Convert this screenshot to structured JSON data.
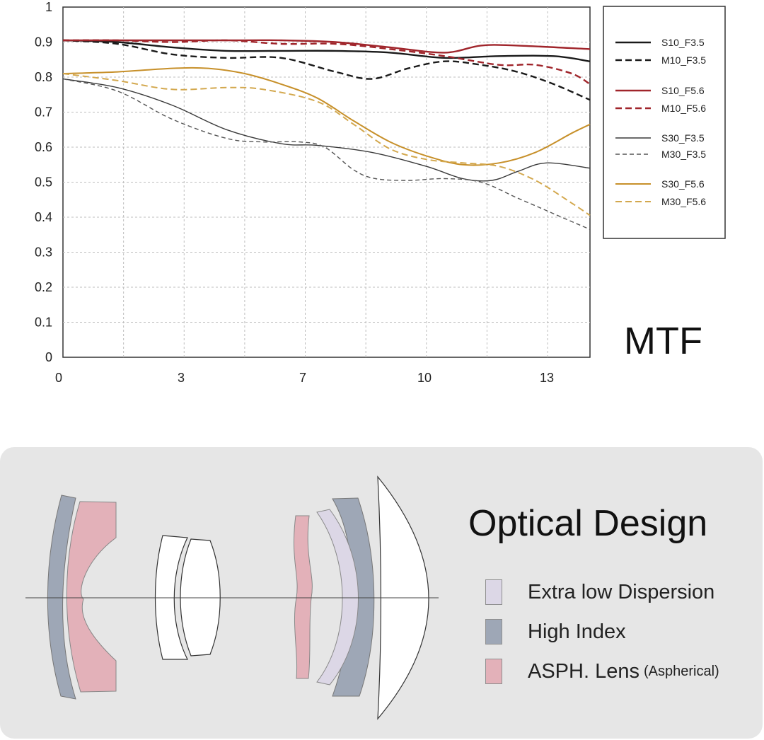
{
  "chart_data": {
    "type": "line",
    "title": "MTF",
    "xlabel": "",
    "ylabel": "",
    "xlim": [
      0,
      14.5
    ],
    "ylim": [
      0,
      1
    ],
    "x_ticks": [
      0,
      3,
      7,
      10,
      13
    ],
    "y_ticks": [
      0,
      0.1,
      0.2,
      0.3,
      0.4,
      0.5,
      0.6,
      0.7,
      0.8,
      0.9,
      1
    ],
    "grid": true,
    "legend_position": "right",
    "series": [
      {
        "name": "S10_F3.5",
        "color": "#1a1a1a",
        "style": "solid",
        "width": 2.4,
        "points": [
          [
            0,
            0.905
          ],
          [
            1.5,
            0.9
          ],
          [
            3,
            0.885
          ],
          [
            4.5,
            0.875
          ],
          [
            6,
            0.875
          ],
          [
            7.5,
            0.875
          ],
          [
            9,
            0.87
          ],
          [
            10.5,
            0.855
          ],
          [
            12,
            0.86
          ],
          [
            13.5,
            0.86
          ],
          [
            14.5,
            0.845
          ]
        ]
      },
      {
        "name": "M10_F3.5",
        "color": "#1a1a1a",
        "style": "dashed",
        "width": 2.4,
        "points": [
          [
            0,
            0.905
          ],
          [
            1.5,
            0.895
          ],
          [
            3,
            0.865
          ],
          [
            4.5,
            0.855
          ],
          [
            6,
            0.855
          ],
          [
            7.5,
            0.815
          ],
          [
            8.5,
            0.795
          ],
          [
            9.5,
            0.825
          ],
          [
            10.5,
            0.845
          ],
          [
            11.5,
            0.835
          ],
          [
            12.5,
            0.815
          ],
          [
            13.5,
            0.78
          ],
          [
            14.5,
            0.735
          ]
        ]
      },
      {
        "name": "S10_F5.6",
        "color": "#a0252b",
        "style": "solid",
        "width": 2.4,
        "points": [
          [
            0,
            0.905
          ],
          [
            1.5,
            0.905
          ],
          [
            3,
            0.905
          ],
          [
            4.5,
            0.905
          ],
          [
            6,
            0.905
          ],
          [
            7.5,
            0.9
          ],
          [
            9,
            0.885
          ],
          [
            10.5,
            0.87
          ],
          [
            11.5,
            0.89
          ],
          [
            12.5,
            0.89
          ],
          [
            14.5,
            0.88
          ]
        ]
      },
      {
        "name": "M10_F5.6",
        "color": "#a0252b",
        "style": "dashed",
        "width": 2.4,
        "points": [
          [
            0,
            0.905
          ],
          [
            1.5,
            0.905
          ],
          [
            3,
            0.9
          ],
          [
            4.5,
            0.905
          ],
          [
            6,
            0.895
          ],
          [
            7.5,
            0.895
          ],
          [
            9,
            0.88
          ],
          [
            10.5,
            0.86
          ],
          [
            12,
            0.835
          ],
          [
            13,
            0.835
          ],
          [
            14,
            0.81
          ],
          [
            14.5,
            0.78
          ]
        ]
      },
      {
        "name": "S30_F3.5",
        "color": "#3a3a3a",
        "style": "solid",
        "width": 1.4,
        "points": [
          [
            0,
            0.795
          ],
          [
            1.5,
            0.77
          ],
          [
            3,
            0.72
          ],
          [
            4.5,
            0.65
          ],
          [
            6,
            0.61
          ],
          [
            7,
            0.605
          ],
          [
            8.5,
            0.585
          ],
          [
            10,
            0.545
          ],
          [
            11,
            0.51
          ],
          [
            11.8,
            0.505
          ],
          [
            12.5,
            0.53
          ],
          [
            13.3,
            0.555
          ],
          [
            14.5,
            0.54
          ]
        ]
      },
      {
        "name": "M30_F3.5",
        "color": "#555555",
        "style": "dashed",
        "width": 1.4,
        "points": [
          [
            0,
            0.795
          ],
          [
            1.5,
            0.76
          ],
          [
            3,
            0.68
          ],
          [
            4.5,
            0.625
          ],
          [
            5.5,
            0.615
          ],
          [
            6.5,
            0.615
          ],
          [
            7.2,
            0.6
          ],
          [
            8,
            0.535
          ],
          [
            8.6,
            0.51
          ],
          [
            9.5,
            0.505
          ],
          [
            10.5,
            0.51
          ],
          [
            11.5,
            0.5
          ],
          [
            12.5,
            0.455
          ],
          [
            13.5,
            0.41
          ],
          [
            14.5,
            0.365
          ]
        ]
      },
      {
        "name": "S30_F5.6",
        "color": "#c7902a",
        "style": "solid",
        "width": 2.0,
        "points": [
          [
            0,
            0.81
          ],
          [
            1.5,
            0.815
          ],
          [
            3,
            0.825
          ],
          [
            4,
            0.825
          ],
          [
            5,
            0.81
          ],
          [
            6,
            0.78
          ],
          [
            7,
            0.74
          ],
          [
            8,
            0.675
          ],
          [
            9,
            0.615
          ],
          [
            10,
            0.575
          ],
          [
            11,
            0.55
          ],
          [
            12,
            0.555
          ],
          [
            13,
            0.585
          ],
          [
            14,
            0.64
          ],
          [
            14.5,
            0.665
          ]
        ]
      },
      {
        "name": "M30_F5.6",
        "color": "#d3a84e",
        "style": "dashed",
        "width": 2.0,
        "points": [
          [
            0,
            0.81
          ],
          [
            1.5,
            0.79
          ],
          [
            3,
            0.765
          ],
          [
            4.5,
            0.77
          ],
          [
            5.5,
            0.765
          ],
          [
            7,
            0.73
          ],
          [
            8,
            0.665
          ],
          [
            9,
            0.595
          ],
          [
            10,
            0.565
          ],
          [
            11,
            0.555
          ],
          [
            12,
            0.545
          ],
          [
            13,
            0.505
          ],
          [
            14,
            0.44
          ],
          [
            14.5,
            0.405
          ]
        ]
      }
    ]
  },
  "optical_design": {
    "title": "Optical Design",
    "key": [
      {
        "label": "Extra low Dispersion",
        "sublabel": "",
        "color": "#dcd7e6"
      },
      {
        "label": "High Index",
        "sublabel": "",
        "color": "#9ea7b6"
      },
      {
        "label": "ASPH. Lens",
        "sublabel": "(Aspherical)",
        "color": "#e3b1b9"
      }
    ]
  }
}
